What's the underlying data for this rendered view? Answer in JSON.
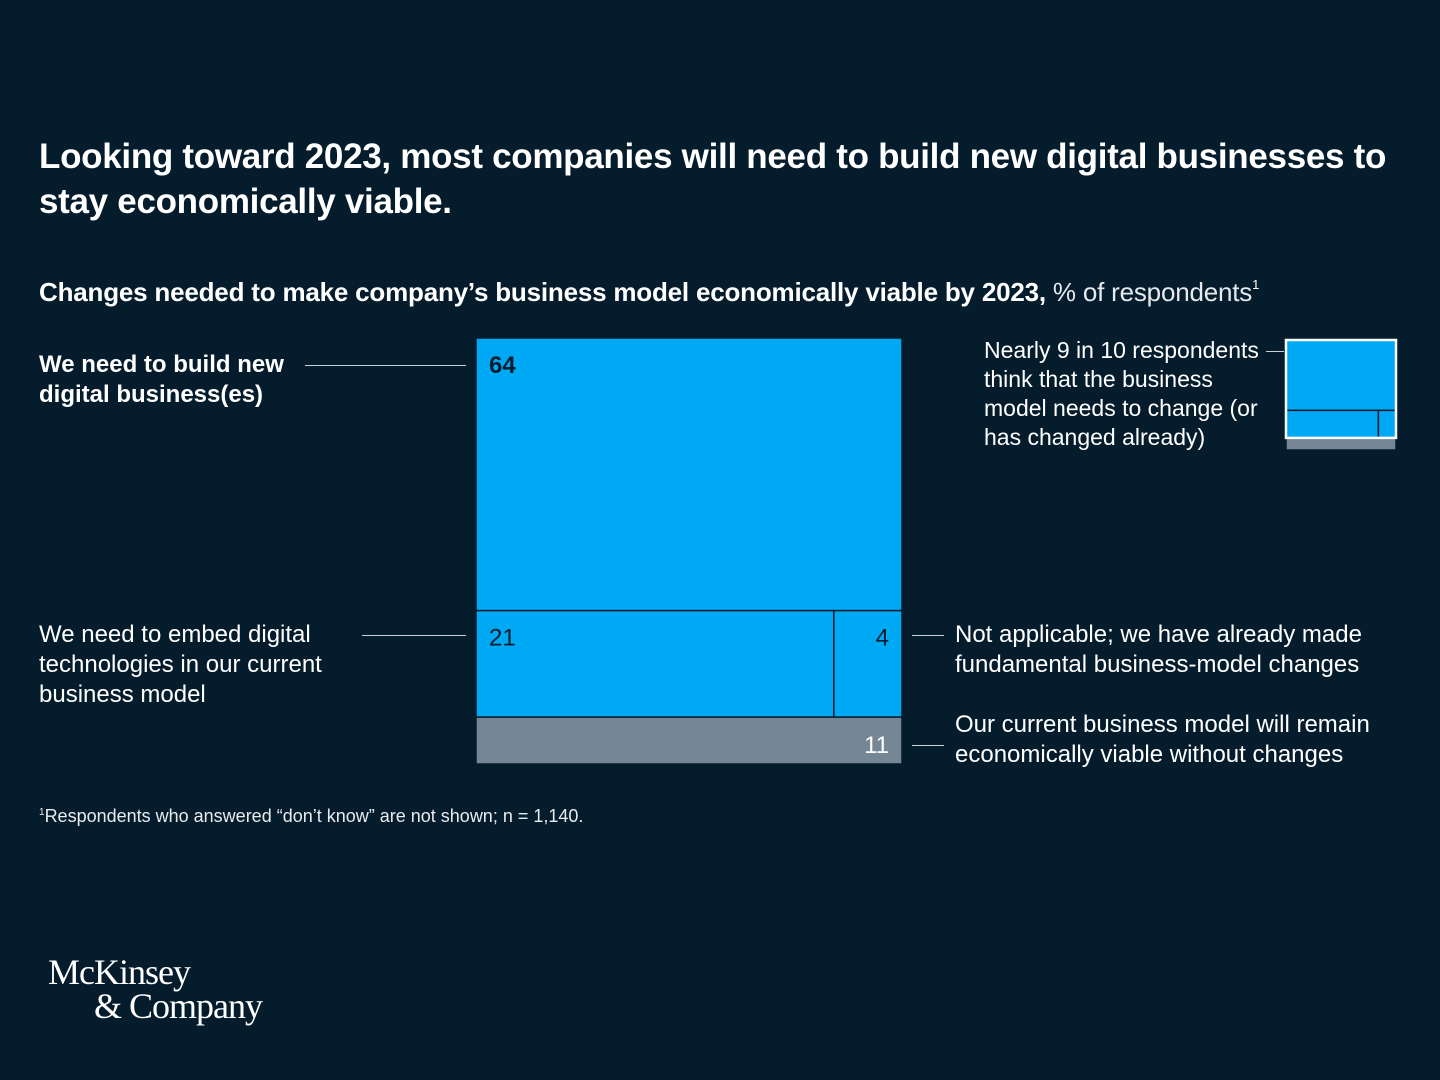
{
  "header": {
    "title": "Looking toward 2023, most companies will need to build new digital businesses to stay economically viable.",
    "subtitle_bold": "Changes needed to make company’s business model economically viable by 2023,",
    "subtitle_light": " % of respondents",
    "subtitle_footnote_marker": "1"
  },
  "chart_data": {
    "type": "treemap",
    "title": "Changes needed to make company’s business model economically viable by 2023, % of respondents",
    "unit": "% of respondents",
    "segments": [
      {
        "key": "build",
        "label": "We need to build new digital business(es)",
        "value": 64,
        "color": "#00a9f4",
        "group": "change"
      },
      {
        "key": "embed",
        "label": "We need to embed digital technologies in our current business model",
        "value": 21,
        "color": "#00a9f4",
        "group": "change"
      },
      {
        "key": "na",
        "label": "Not applicable; we have already made fundamental business-model changes",
        "value": 4,
        "color": "#00a9f4",
        "group": "change"
      },
      {
        "key": "viable",
        "label": "Our current business model will remain economically viable without changes",
        "value": 11,
        "color": "#758795",
        "group": "no-change"
      }
    ],
    "annotation": "Nearly 9 in 10 respondents think that the business model needs to change (or has changed already)",
    "legend_position": "top-right"
  },
  "labels": {
    "build": "We need to build new digital business(es)",
    "embed": "We need to embed digital technologies in our current business model",
    "na": "Not applicable; we have already made fundamental business-model changes",
    "viable": "Our current business model will remain economically viable without changes",
    "annotation": "Nearly 9 in 10 respondents think that the business model needs to change (or has changed already)"
  },
  "footnote": {
    "marker": "1",
    "text": "Respondents who answered “don’t know” are not shown; n = 1,140."
  },
  "brand": {
    "line1": "McKinsey",
    "line2": "& Company"
  },
  "colors": {
    "background": "#051c2c",
    "change": "#00a9f4",
    "no_change": "#758795",
    "divider": "#051c2c"
  }
}
